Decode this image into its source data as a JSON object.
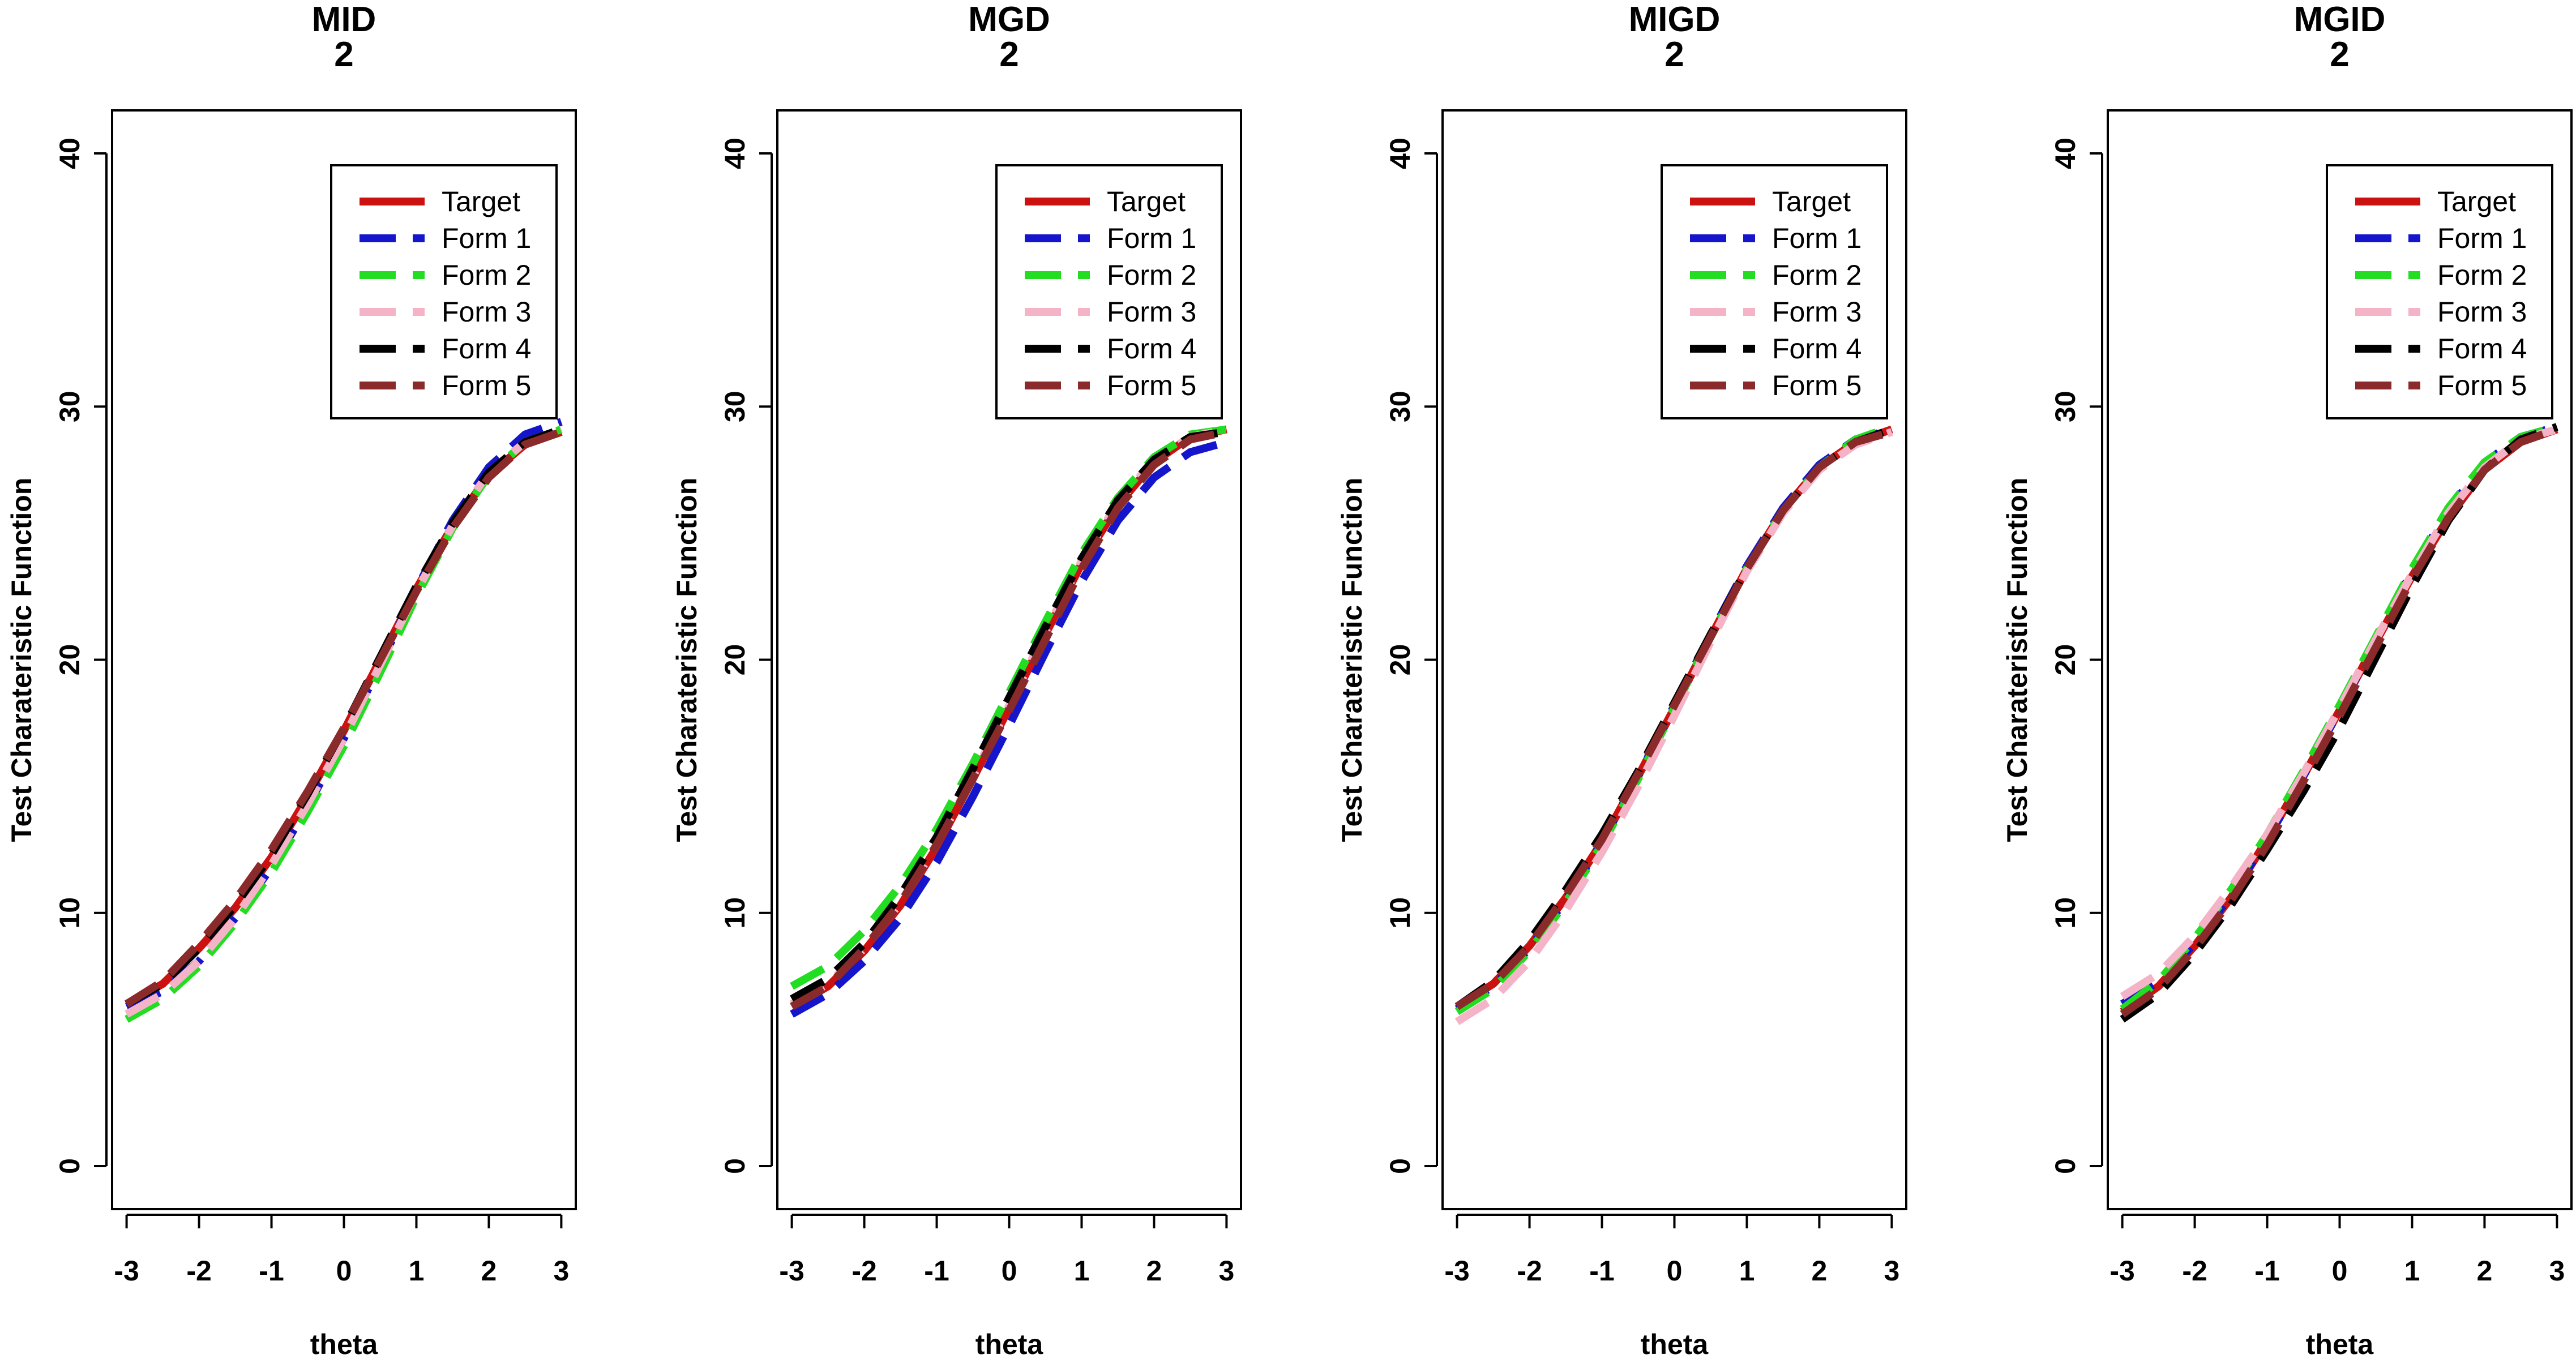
{
  "colors": {
    "Target": "#cc1111",
    "Form 1": "#1515cc",
    "Form 2": "#22dd22",
    "Form 3": "#f5b3c8",
    "Form 4": "#000000",
    "Form 5": "#8b2a2a",
    "axis": "#000000",
    "background": "#ffffff"
  },
  "chart_data": [
    {
      "type": "line",
      "title": "MID\n2",
      "xlabel": "theta",
      "ylabel": "Test Charateristic Function",
      "x_ticks": [
        -3,
        -2,
        -1,
        0,
        1,
        2,
        3
      ],
      "y_ticks": [
        0,
        10,
        20,
        30,
        40
      ],
      "xlim": [
        -3.2,
        3.2
      ],
      "ylim": [
        -1.7,
        41.7
      ],
      "grid": false,
      "legend_position": "top-right",
      "x": [
        -3,
        -2.5,
        -2,
        -1.5,
        -1,
        -0.5,
        0,
        0.5,
        1,
        1.5,
        2,
        2.5,
        3
      ],
      "series": [
        {
          "name": "Target",
          "style": "solid",
          "values": [
            6.4,
            7.2,
            8.6,
            10.2,
            12.2,
            14.6,
            17.2,
            20.0,
            22.8,
            25.3,
            27.3,
            28.5,
            29.0
          ]
        },
        {
          "name": "Form 1",
          "style": "dashed",
          "values": [
            6.3,
            6.9,
            8.1,
            9.8,
            11.8,
            14.2,
            16.9,
            19.8,
            22.8,
            25.5,
            27.6,
            28.9,
            29.4
          ]
        },
        {
          "name": "Form 2",
          "style": "dashed",
          "values": [
            5.8,
            6.6,
            7.9,
            9.6,
            11.6,
            14.0,
            16.6,
            19.5,
            22.5,
            25.2,
            27.3,
            28.6,
            29.1
          ]
        },
        {
          "name": "Form 3",
          "style": "dashed",
          "values": [
            6.0,
            6.8,
            8.1,
            9.8,
            11.9,
            14.3,
            16.9,
            19.8,
            22.7,
            25.3,
            27.4,
            28.6,
            29.1
          ]
        },
        {
          "name": "Form 4",
          "style": "dashed",
          "values": [
            6.4,
            7.2,
            8.6,
            10.3,
            12.3,
            14.7,
            17.3,
            20.1,
            22.9,
            25.4,
            27.4,
            28.6,
            29.1
          ]
        },
        {
          "name": "Form 5",
          "style": "dashed",
          "values": [
            6.4,
            7.3,
            8.8,
            10.5,
            12.5,
            14.8,
            17.3,
            20.0,
            22.7,
            25.2,
            27.2,
            28.5,
            29.0
          ]
        }
      ]
    },
    {
      "type": "line",
      "title": "MGD\n2",
      "xlabel": "theta",
      "ylabel": "Test Charateristic Function",
      "x_ticks": [
        -3,
        -2,
        -1,
        0,
        1,
        2,
        3
      ],
      "y_ticks": [
        0,
        10,
        20,
        30,
        40
      ],
      "xlim": [
        -3.2,
        3.2
      ],
      "ylim": [
        -1.7,
        41.7
      ],
      "grid": false,
      "legend_position": "top-right",
      "x": [
        -3,
        -2.5,
        -2,
        -1.5,
        -1,
        -0.5,
        0,
        0.5,
        1,
        1.5,
        2,
        2.5,
        3
      ],
      "series": [
        {
          "name": "Target",
          "style": "solid",
          "values": [
            6.3,
            7.1,
            8.5,
            10.3,
            12.6,
            15.3,
            18.1,
            21.0,
            23.8,
            26.1,
            27.8,
            28.8,
            29.1
          ]
        },
        {
          "name": "Form 1",
          "style": "dashed",
          "values": [
            6.0,
            6.8,
            8.1,
            9.8,
            12.0,
            14.6,
            17.4,
            20.3,
            23.1,
            25.5,
            27.2,
            28.2,
            28.6
          ]
        },
        {
          "name": "Form 2",
          "style": "dashed",
          "values": [
            7.1,
            7.9,
            9.3,
            11.1,
            13.3,
            15.9,
            18.7,
            21.5,
            24.2,
            26.4,
            28.0,
            28.9,
            29.1
          ]
        },
        {
          "name": "Form 3",
          "style": "dashed",
          "values": [
            6.4,
            7.2,
            8.6,
            10.4,
            12.7,
            15.4,
            18.2,
            21.1,
            23.9,
            26.2,
            27.9,
            28.8,
            29.1
          ]
        },
        {
          "name": "Form 4",
          "style": "dashed",
          "values": [
            6.6,
            7.4,
            8.8,
            10.7,
            13.0,
            15.7,
            18.5,
            21.3,
            24.0,
            26.3,
            27.9,
            28.8,
            29.0
          ]
        },
        {
          "name": "Form 5",
          "style": "dashed",
          "values": [
            6.3,
            7.1,
            8.6,
            10.4,
            12.7,
            15.3,
            18.0,
            20.8,
            23.6,
            26.0,
            27.7,
            28.7,
            29.0
          ]
        }
      ]
    },
    {
      "type": "line",
      "title": "MIGD\n2",
      "xlabel": "theta",
      "ylabel": "Test Charateristic Function",
      "x_ticks": [
        -3,
        -2,
        -1,
        0,
        1,
        2,
        3
      ],
      "y_ticks": [
        0,
        10,
        20,
        30,
        40
      ],
      "xlim": [
        -3.2,
        3.2
      ],
      "ylim": [
        -1.7,
        41.7
      ],
      "grid": false,
      "legend_position": "top-right",
      "x": [
        -3,
        -2.5,
        -2,
        -1.5,
        -1,
        -0.5,
        0,
        0.5,
        1,
        1.5,
        2,
        2.5,
        3
      ],
      "series": [
        {
          "name": "Target",
          "style": "solid",
          "values": [
            6.3,
            7.2,
            8.7,
            10.6,
            12.8,
            15.4,
            18.1,
            20.9,
            23.6,
            25.9,
            27.6,
            28.6,
            29.1
          ]
        },
        {
          "name": "Form 1",
          "style": "dashed",
          "values": [
            6.2,
            7.1,
            8.6,
            10.5,
            12.8,
            15.4,
            18.2,
            21.0,
            23.7,
            26.0,
            27.7,
            28.7,
            29.1
          ]
        },
        {
          "name": "Form 2",
          "style": "dashed",
          "values": [
            6.1,
            7.0,
            8.5,
            10.4,
            12.7,
            15.3,
            18.1,
            20.9,
            23.6,
            25.9,
            27.6,
            28.7,
            29.2
          ]
        },
        {
          "name": "Form 3",
          "style": "dashed",
          "values": [
            5.7,
            6.6,
            8.1,
            10.1,
            12.4,
            15.0,
            17.8,
            20.7,
            23.5,
            25.8,
            27.5,
            28.5,
            29.0
          ]
        },
        {
          "name": "Form 4",
          "style": "dashed",
          "values": [
            6.3,
            7.3,
            8.9,
            10.9,
            13.1,
            15.6,
            18.3,
            21.0,
            23.6,
            25.9,
            27.6,
            28.6,
            29.1
          ]
        },
        {
          "name": "Form 5",
          "style": "dashed",
          "values": [
            6.3,
            7.2,
            8.7,
            10.7,
            12.9,
            15.5,
            18.2,
            20.9,
            23.6,
            25.9,
            27.6,
            28.6,
            29.0
          ]
        }
      ]
    },
    {
      "type": "line",
      "title": "MGID\n2",
      "xlabel": "theta",
      "ylabel": "Test Charateristic Function",
      "x_ticks": [
        -3,
        -2,
        -1,
        0,
        1,
        2,
        3
      ],
      "y_ticks": [
        0,
        10,
        20,
        30,
        40
      ],
      "xlim": [
        -3.2,
        3.2
      ],
      "ylim": [
        -1.7,
        41.7
      ],
      "grid": false,
      "legend_position": "top-right",
      "x": [
        -3,
        -2.5,
        -2,
        -1.5,
        -1,
        -0.5,
        0,
        0.5,
        1,
        1.5,
        2,
        2.5,
        3
      ],
      "series": [
        {
          "name": "Target",
          "style": "solid",
          "values": [
            6.1,
            7.1,
            8.7,
            10.6,
            12.9,
            15.4,
            18.0,
            20.7,
            23.3,
            25.6,
            27.5,
            28.6,
            29.1
          ]
        },
        {
          "name": "Form 1",
          "style": "dashed",
          "values": [
            6.4,
            7.3,
            8.8,
            10.7,
            12.9,
            15.4,
            18.0,
            20.8,
            23.5,
            25.9,
            27.8,
            28.8,
            29.2
          ]
        },
        {
          "name": "Form 2",
          "style": "dashed",
          "values": [
            6.2,
            7.3,
            9.0,
            10.9,
            13.1,
            15.6,
            18.2,
            20.9,
            23.6,
            26.0,
            27.8,
            28.8,
            29.2
          ]
        },
        {
          "name": "Form 3",
          "style": "dashed",
          "values": [
            6.7,
            7.6,
            9.1,
            11.0,
            13.1,
            15.5,
            18.1,
            20.8,
            23.4,
            25.8,
            27.6,
            28.7,
            29.1
          ]
        },
        {
          "name": "Form 4",
          "style": "dashed",
          "values": [
            5.8,
            6.8,
            8.4,
            10.3,
            12.5,
            14.8,
            17.3,
            20.1,
            22.9,
            25.5,
            27.5,
            28.7,
            29.2
          ]
        },
        {
          "name": "Form 5",
          "style": "dashed",
          "values": [
            6.0,
            7.0,
            8.6,
            10.5,
            12.7,
            15.2,
            17.8,
            20.5,
            23.2,
            25.6,
            27.5,
            28.6,
            29.1
          ]
        }
      ]
    }
  ]
}
